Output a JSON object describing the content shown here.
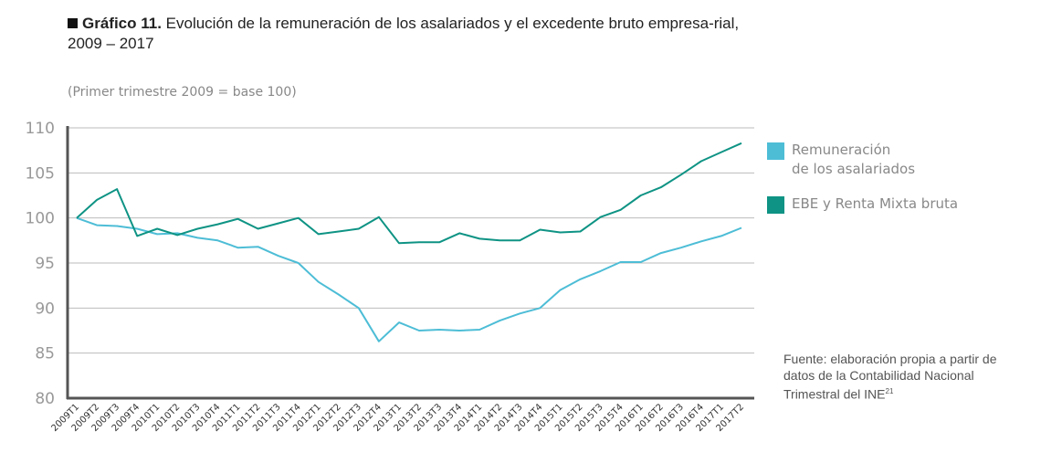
{
  "title": {
    "bold": "Gráfico 11.",
    "text": " Evolución de la remuneración de los asalariados y el excedente bruto empresa-rial, 2009 – 2017"
  },
  "subtitle": "(Primer trimestre 2009 = base 100)",
  "source": {
    "text": "Fuente: elaboración propia a partir de datos de la Contabilidad Nacional Trimestral del INE",
    "sup": "21"
  },
  "chart_data": {
    "type": "line",
    "ylim": [
      80,
      110
    ],
    "yticks": [
      "80",
      "85",
      "90",
      "95",
      "100",
      "105",
      "110"
    ],
    "grid": true,
    "legend_placement": "right",
    "categories": [
      "2009T1",
      "2009T2",
      "2009T3",
      "2009T4",
      "2010T1",
      "2010T2",
      "2010T3",
      "2010T4",
      "2011T1",
      "2011T2",
      "2011T3",
      "2011T4",
      "2012T1",
      "2012T2",
      "2012T3",
      "2012T4",
      "2013T1",
      "2013T2",
      "2013T3",
      "2013T4",
      "2014T1",
      "2014T2",
      "2014T3",
      "2014T4",
      "2015T1",
      "2015T2",
      "2015T3",
      "2015T4",
      "2016T1",
      "2016T2",
      "2016T3",
      "2016T4",
      "2017T1",
      "2017T2"
    ],
    "series": [
      {
        "name": "Remuneración de los asalariados",
        "label_lines": [
          "Remuneración",
          "de los asalariados"
        ],
        "color": "#4dbdd6",
        "values": [
          100,
          99.2,
          99.1,
          98.8,
          98.2,
          98.3,
          97.8,
          97.5,
          96.7,
          96.8,
          95.8,
          95.0,
          92.9,
          91.5,
          90.0,
          86.3,
          88.4,
          87.5,
          87.6,
          87.5,
          87.6,
          88.6,
          89.4,
          90.0,
          92.0,
          93.2,
          94.1,
          95.1,
          95.1,
          96.1,
          96.7,
          97.4,
          98.0,
          98.9
        ]
      },
      {
        "name": "EBE y Renta Mixta bruta",
        "label_lines": [
          "EBE y Renta Mixta bruta"
        ],
        "color": "#0e9384",
        "values": [
          100,
          102.0,
          103.2,
          98.0,
          98.8,
          98.1,
          98.8,
          99.3,
          99.9,
          98.8,
          99.4,
          100.0,
          98.2,
          98.5,
          98.8,
          100.1,
          97.2,
          97.3,
          97.3,
          98.3,
          97.7,
          97.5,
          97.5,
          98.7,
          98.4,
          98.5,
          100.1,
          100.9,
          102.5,
          103.4,
          104.8,
          106.3,
          107.3,
          108.3
        ]
      }
    ]
  }
}
